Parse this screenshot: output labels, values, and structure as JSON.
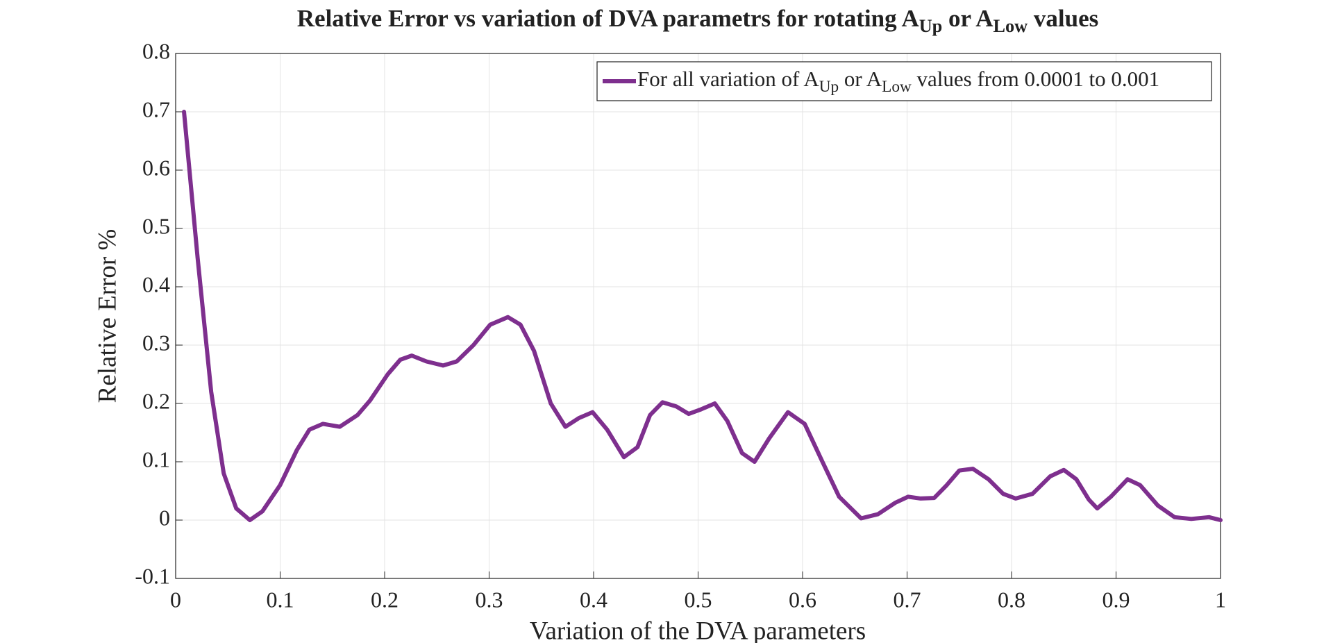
{
  "chart_data": {
    "type": "line",
    "title": [
      {
        "text": "Relative Error vs variation of DVA parametrs for rotating A"
      },
      {
        "text": "Up",
        "subscript": true
      },
      {
        "text": " or A"
      },
      {
        "text": "Low",
        "subscript": true
      },
      {
        "text": " values"
      }
    ],
    "x_label": "Variation of the DVA parameters",
    "y_label": "Relative Error %",
    "x": [
      0.008,
      0.021,
      0.034,
      0.046,
      0.058,
      0.071,
      0.083,
      0.1,
      0.116,
      0.128,
      0.141,
      0.157,
      0.174,
      0.186,
      0.203,
      0.215,
      0.226,
      0.24,
      0.256,
      0.269,
      0.285,
      0.301,
      0.318,
      0.33,
      0.343,
      0.359,
      0.373,
      0.386,
      0.399,
      0.413,
      0.429,
      0.442,
      0.454,
      0.466,
      0.479,
      0.491,
      0.503,
      0.516,
      0.528,
      0.542,
      0.554,
      0.568,
      0.586,
      0.602,
      0.619,
      0.635,
      0.656,
      0.672,
      0.689,
      0.701,
      0.713,
      0.726,
      0.738,
      0.75,
      0.763,
      0.778,
      0.792,
      0.804,
      0.82,
      0.837,
      0.85,
      0.862,
      0.874,
      0.882,
      0.895,
      0.911,
      0.923,
      0.94,
      0.956,
      0.972,
      0.989,
      1.0
    ],
    "series": [
      {
        "name": [
          {
            "text": "For all variation of A"
          },
          {
            "text": "Up",
            "subscript": true
          },
          {
            "text": " or A"
          },
          {
            "text": "Low",
            "subscript": true
          },
          {
            "text": " values from 0.0001 to 0.001"
          }
        ],
        "color": "#7e2f8e",
        "values": [
          0.7,
          0.45,
          0.22,
          0.08,
          0.02,
          0.0,
          0.015,
          0.06,
          0.12,
          0.155,
          0.165,
          0.16,
          0.18,
          0.205,
          0.25,
          0.275,
          0.282,
          0.272,
          0.265,
          0.272,
          0.3,
          0.335,
          0.348,
          0.335,
          0.29,
          0.2,
          0.16,
          0.175,
          0.185,
          0.155,
          0.108,
          0.125,
          0.18,
          0.202,
          0.195,
          0.182,
          0.19,
          0.2,
          0.17,
          0.115,
          0.1,
          0.14,
          0.185,
          0.165,
          0.1,
          0.04,
          0.003,
          0.01,
          0.03,
          0.04,
          0.037,
          0.038,
          0.06,
          0.085,
          0.088,
          0.07,
          0.045,
          0.037,
          0.045,
          0.075,
          0.086,
          0.07,
          0.035,
          0.02,
          0.04,
          0.07,
          0.06,
          0.025,
          0.005,
          0.002,
          0.005,
          0.0
        ]
      }
    ],
    "xlim": [
      0,
      1
    ],
    "xticks": [
      0,
      0.1,
      0.2,
      0.3,
      0.4,
      0.5,
      0.6,
      0.7,
      0.8,
      0.9,
      1
    ],
    "ylim": [
      -0.1,
      0.8
    ],
    "yticks": [
      -0.1,
      0,
      0.1,
      0.2,
      0.3,
      0.4,
      0.5,
      0.6,
      0.7,
      0.8
    ],
    "grid": true,
    "legend": "northeast"
  }
}
